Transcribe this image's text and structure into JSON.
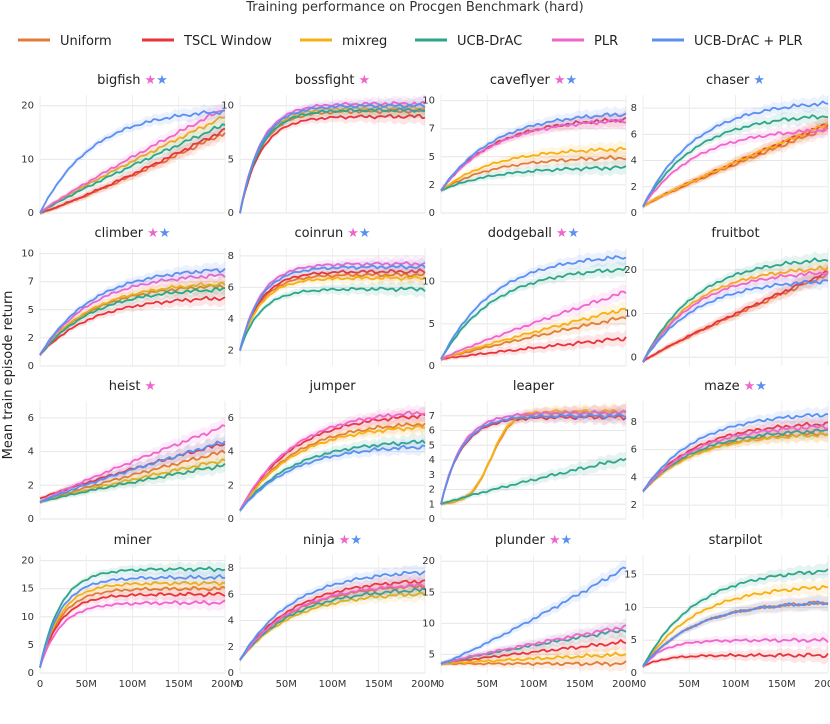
{
  "title": "Training performance on Procgen Benchmark (hard)",
  "ylabel": "Mean train episode return",
  "legend": [
    {
      "name": "Uniform",
      "color": "#e07b39"
    },
    {
      "name": "TSCL Window",
      "color": "#e8333a"
    },
    {
      "name": "mixreg",
      "color": "#f5b014"
    },
    {
      "name": "UCB-DrAC",
      "color": "#2ea58a"
    },
    {
      "name": "PLR",
      "color": "#ee66cc"
    },
    {
      "name": "UCB-DrAC + PLR",
      "color": "#5b8ff0"
    }
  ],
  "star_colors": {
    "pink": "#ee66cc",
    "blue": "#5b8ff0"
  },
  "star_glyph": "★",
  "x_tick_labels": [
    "0",
    "50M",
    "100M",
    "150M",
    "200M"
  ],
  "chart_data": [
    {
      "type": "line",
      "title": "bigfish",
      "stars": [
        "pink",
        "blue"
      ],
      "yticks": [
        0,
        10,
        20
      ],
      "ylim": [
        0,
        22
      ],
      "series": [
        {
          "name": "Uniform",
          "start": 0,
          "end": 15,
          "shape": "slow"
        },
        {
          "name": "TSCL Window",
          "start": 0,
          "end": 15.5,
          "shape": "slow"
        },
        {
          "name": "mixreg",
          "start": 0,
          "end": 18,
          "shape": "lin"
        },
        {
          "name": "UCB-DrAC",
          "start": 0,
          "end": 16.5,
          "shape": "lin"
        },
        {
          "name": "PLR",
          "start": 0,
          "end": 19.5,
          "shape": "lin"
        },
        {
          "name": "UCB-DrAC + PLR",
          "start": 0,
          "end": 19.5,
          "shape": "fast"
        }
      ]
    },
    {
      "type": "line",
      "title": "bossfight",
      "stars": [
        "pink"
      ],
      "yticks": [
        0,
        5,
        10
      ],
      "ylim": [
        0,
        11
      ],
      "series": [
        {
          "name": "Uniform",
          "start": 0,
          "end": 9.5,
          "shape": "vfast"
        },
        {
          "name": "TSCL Window",
          "start": 0,
          "end": 9.0,
          "shape": "vfast"
        },
        {
          "name": "mixreg",
          "start": 0,
          "end": 9.8,
          "shape": "vfast"
        },
        {
          "name": "UCB-DrAC",
          "start": 0,
          "end": 9.6,
          "shape": "vfast"
        },
        {
          "name": "PLR",
          "start": 0,
          "end": 10.2,
          "shape": "vfast"
        },
        {
          "name": "UCB-DrAC + PLR",
          "start": 0,
          "end": 10.0,
          "shape": "vfast"
        }
      ]
    },
    {
      "type": "line",
      "title": "caveflyer",
      "stars": [
        "pink",
        "blue"
      ],
      "yticks": [
        0,
        2.5,
        5,
        7.5,
        10
      ],
      "yticklabels": [
        "0",
        "2",
        "5",
        "7",
        "10"
      ],
      "ylim": [
        0,
        10.5
      ],
      "series": [
        {
          "name": "Uniform",
          "start": 2,
          "end": 5,
          "shape": "fast"
        },
        {
          "name": "TSCL Window",
          "start": 2,
          "end": 8.5,
          "shape": "fast"
        },
        {
          "name": "mixreg",
          "start": 2,
          "end": 5.8,
          "shape": "fast"
        },
        {
          "name": "UCB-DrAC",
          "start": 2,
          "end": 4.1,
          "shape": "fast"
        },
        {
          "name": "PLR",
          "start": 2,
          "end": 8.4,
          "shape": "fast"
        },
        {
          "name": "UCB-DrAC + PLR",
          "start": 2,
          "end": 9.0,
          "shape": "fast"
        }
      ]
    },
    {
      "type": "line",
      "title": "chaser",
      "stars": [
        "blue"
      ],
      "yticks": [
        0,
        2,
        4,
        6,
        8
      ],
      "ylim": [
        0,
        9
      ],
      "series": [
        {
          "name": "Uniform",
          "start": 0.5,
          "end": 6.5,
          "shape": "lin"
        },
        {
          "name": "TSCL Window",
          "start": 0.5,
          "end": 6.8,
          "shape": "lin"
        },
        {
          "name": "mixreg",
          "start": 0.5,
          "end": 6.8,
          "shape": "lin"
        },
        {
          "name": "UCB-DrAC",
          "start": 0.5,
          "end": 7.6,
          "shape": "fast"
        },
        {
          "name": "PLR",
          "start": 0.5,
          "end": 6.5,
          "shape": "fast"
        },
        {
          "name": "UCB-DrAC + PLR",
          "start": 0.5,
          "end": 8.6,
          "shape": "fast"
        }
      ]
    },
    {
      "type": "line",
      "title": "climber",
      "stars": [
        "pink",
        "blue"
      ],
      "yticks": [
        0,
        2.5,
        5,
        7.5,
        10
      ],
      "yticklabels": [
        "0",
        "2",
        "5",
        "7",
        "10"
      ],
      "ylim": [
        0,
        10.5
      ],
      "series": [
        {
          "name": "Uniform",
          "start": 1,
          "end": 7.3,
          "shape": "fast"
        },
        {
          "name": "TSCL Window",
          "start": 1,
          "end": 6.2,
          "shape": "fast"
        },
        {
          "name": "mixreg",
          "start": 1,
          "end": 7.5,
          "shape": "fast"
        },
        {
          "name": "UCB-DrAC",
          "start": 1,
          "end": 7.0,
          "shape": "fast"
        },
        {
          "name": "PLR",
          "start": 1,
          "end": 8.3,
          "shape": "fast"
        },
        {
          "name": "UCB-DrAC + PLR",
          "start": 1,
          "end": 8.8,
          "shape": "fast"
        }
      ]
    },
    {
      "type": "line",
      "title": "coinrun",
      "stars": [
        "pink",
        "blue"
      ],
      "yticks": [
        2,
        4,
        6,
        8
      ],
      "ylim": [
        1,
        8.5
      ],
      "series": [
        {
          "name": "Uniform",
          "start": 2,
          "end": 6.8,
          "shape": "vfast"
        },
        {
          "name": "TSCL Window",
          "start": 2,
          "end": 7.0,
          "shape": "vfast"
        },
        {
          "name": "mixreg",
          "start": 2,
          "end": 6.6,
          "shape": "vfast"
        },
        {
          "name": "UCB-DrAC",
          "start": 2,
          "end": 5.9,
          "shape": "vfast"
        },
        {
          "name": "PLR",
          "start": 2,
          "end": 7.5,
          "shape": "vfast"
        },
        {
          "name": "UCB-DrAC + PLR",
          "start": 2,
          "end": 7.3,
          "shape": "vfast"
        }
      ]
    },
    {
      "type": "line",
      "title": "dodgeball",
      "stars": [
        "pink",
        "blue"
      ],
      "yticks": [
        0,
        5,
        10
      ],
      "ylim": [
        0,
        14
      ],
      "series": [
        {
          "name": "Uniform",
          "start": 0.8,
          "end": 5.8,
          "shape": "lin"
        },
        {
          "name": "TSCL Window",
          "start": 0.8,
          "end": 3.3,
          "shape": "lin"
        },
        {
          "name": "mixreg",
          "start": 0.8,
          "end": 6.8,
          "shape": "lin"
        },
        {
          "name": "UCB-DrAC",
          "start": 0.8,
          "end": 11.8,
          "shape": "fast"
        },
        {
          "name": "PLR",
          "start": 0.8,
          "end": 8.8,
          "shape": "lin"
        },
        {
          "name": "UCB-DrAC + PLR",
          "start": 0.8,
          "end": 13.3,
          "shape": "fast"
        }
      ]
    },
    {
      "type": "line",
      "title": "fruitbot",
      "stars": [],
      "yticks": [
        0,
        10,
        20
      ],
      "ylim": [
        -2,
        25
      ],
      "series": [
        {
          "name": "Uniform",
          "start": -1,
          "end": 19,
          "shape": "lin"
        },
        {
          "name": "TSCL Window",
          "start": -1,
          "end": 19.5,
          "shape": "lin"
        },
        {
          "name": "mixreg",
          "start": -1,
          "end": 21,
          "shape": "fast"
        },
        {
          "name": "UCB-DrAC",
          "start": -1,
          "end": 23,
          "shape": "fast"
        },
        {
          "name": "PLR",
          "start": -1,
          "end": 20,
          "shape": "fast"
        },
        {
          "name": "UCB-DrAC + PLR",
          "start": -1,
          "end": 18,
          "shape": "fast"
        }
      ]
    },
    {
      "type": "line",
      "title": "heist",
      "stars": [
        "pink"
      ],
      "yticks": [
        0,
        2,
        4,
        6
      ],
      "ylim": [
        0,
        7
      ],
      "series": [
        {
          "name": "Uniform",
          "start": 1,
          "end": 4.0,
          "shape": "lin"
        },
        {
          "name": "TSCL Window",
          "start": 1.2,
          "end": 4.5,
          "shape": "lin"
        },
        {
          "name": "mixreg",
          "start": 1,
          "end": 3.5,
          "shape": "lin"
        },
        {
          "name": "UCB-DrAC",
          "start": 1,
          "end": 3.2,
          "shape": "lin"
        },
        {
          "name": "PLR",
          "start": 1,
          "end": 5.5,
          "shape": "lin"
        },
        {
          "name": "UCB-DrAC + PLR",
          "start": 1,
          "end": 4.6,
          "shape": "lin"
        }
      ]
    },
    {
      "type": "line",
      "title": "jumper",
      "stars": [],
      "yticks": [
        0,
        2,
        4,
        6
      ],
      "ylim": [
        0,
        7
      ],
      "series": [
        {
          "name": "Uniform",
          "start": 0.5,
          "end": 5.8,
          "shape": "fast"
        },
        {
          "name": "TSCL Window",
          "start": 0.5,
          "end": 6.3,
          "shape": "fast"
        },
        {
          "name": "mixreg",
          "start": 0.5,
          "end": 5.6,
          "shape": "fast"
        },
        {
          "name": "UCB-DrAC",
          "start": 0.5,
          "end": 4.7,
          "shape": "fast"
        },
        {
          "name": "PLR",
          "start": 0.5,
          "end": 6.5,
          "shape": "fast"
        },
        {
          "name": "UCB-DrAC + PLR",
          "start": 0.5,
          "end": 4.4,
          "shape": "fast"
        }
      ]
    },
    {
      "type": "line",
      "title": "leaper",
      "stars": [],
      "yticks": [
        0,
        1,
        2,
        3,
        4,
        5,
        6,
        7
      ],
      "ylim": [
        0,
        8
      ],
      "series": [
        {
          "name": "Uniform",
          "start": 1,
          "end": 7.2,
          "shape": "delay"
        },
        {
          "name": "TSCL Window",
          "start": 1,
          "end": 6.9,
          "shape": "vfast"
        },
        {
          "name": "mixreg",
          "start": 1,
          "end": 7.3,
          "shape": "delay"
        },
        {
          "name": "UCB-DrAC",
          "start": 1,
          "end": 4.1,
          "shape": "lin"
        },
        {
          "name": "PLR",
          "start": 1,
          "end": 7.2,
          "shape": "vfast"
        },
        {
          "name": "UCB-DrAC + PLR",
          "start": 1,
          "end": 7.0,
          "shape": "vfast"
        }
      ]
    },
    {
      "type": "line",
      "title": "maze",
      "stars": [
        "pink",
        "blue"
      ],
      "yticks": [
        2,
        4,
        6,
        8
      ],
      "ylim": [
        1,
        9.5
      ],
      "series": [
        {
          "name": "Uniform",
          "start": 3,
          "end": 7.3,
          "shape": "fast"
        },
        {
          "name": "TSCL Window",
          "start": 3,
          "end": 8.0,
          "shape": "fast"
        },
        {
          "name": "mixreg",
          "start": 3,
          "end": 7.2,
          "shape": "fast"
        },
        {
          "name": "UCB-DrAC",
          "start": 3,
          "end": 7.5,
          "shape": "fast"
        },
        {
          "name": "PLR",
          "start": 3,
          "end": 7.8,
          "shape": "fast"
        },
        {
          "name": "UCB-DrAC + PLR",
          "start": 3,
          "end": 8.7,
          "shape": "fast"
        }
      ]
    },
    {
      "type": "line",
      "title": "miner",
      "stars": [],
      "yticks": [
        0,
        5,
        10,
        15,
        20
      ],
      "ylim": [
        0,
        21
      ],
      "series": [
        {
          "name": "Uniform",
          "start": 1,
          "end": 15,
          "shape": "vfast"
        },
        {
          "name": "TSCL Window",
          "start": 1,
          "end": 14,
          "shape": "vfast"
        },
        {
          "name": "mixreg",
          "start": 1,
          "end": 16,
          "shape": "vfast"
        },
        {
          "name": "UCB-DrAC",
          "start": 1,
          "end": 18.5,
          "shape": "vfast"
        },
        {
          "name": "PLR",
          "start": 1,
          "end": 12.5,
          "shape": "vfast"
        },
        {
          "name": "UCB-DrAC + PLR",
          "start": 1,
          "end": 17,
          "shape": "vfast"
        }
      ]
    },
    {
      "type": "line",
      "title": "ninja",
      "stars": [
        "pink",
        "blue"
      ],
      "yticks": [
        0,
        2,
        4,
        6,
        8
      ],
      "ylim": [
        0,
        9
      ],
      "series": [
        {
          "name": "Uniform",
          "start": 1,
          "end": 6.8,
          "shape": "fast"
        },
        {
          "name": "TSCL Window",
          "start": 1,
          "end": 7.2,
          "shape": "fast"
        },
        {
          "name": "mixreg",
          "start": 1,
          "end": 6.2,
          "shape": "fast"
        },
        {
          "name": "UCB-DrAC",
          "start": 1,
          "end": 6.5,
          "shape": "fast"
        },
        {
          "name": "PLR",
          "start": 1,
          "end": 6.9,
          "shape": "fast"
        },
        {
          "name": "UCB-DrAC + PLR",
          "start": 1,
          "end": 7.9,
          "shape": "fast"
        }
      ]
    },
    {
      "type": "line",
      "title": "plunder",
      "stars": [
        "pink",
        "blue"
      ],
      "yticks": [
        5,
        10,
        15,
        20
      ],
      "ylim": [
        2,
        21
      ],
      "series": [
        {
          "name": "Uniform",
          "start": 3.5,
          "end": 3.5,
          "shape": "lin"
        },
        {
          "name": "TSCL Window",
          "start": 3.5,
          "end": 7,
          "shape": "lin"
        },
        {
          "name": "mixreg",
          "start": 3.5,
          "end": 5,
          "shape": "lin"
        },
        {
          "name": "UCB-DrAC",
          "start": 3.5,
          "end": 9,
          "shape": "lin"
        },
        {
          "name": "PLR",
          "start": 3.5,
          "end": 9.5,
          "shape": "lin"
        },
        {
          "name": "UCB-DrAC + PLR",
          "start": 3.5,
          "end": 19,
          "shape": "slow"
        }
      ]
    },
    {
      "type": "line",
      "title": "starpilot",
      "stars": [],
      "yticks": [
        0,
        5,
        10,
        15
      ],
      "ylim": [
        0,
        18
      ],
      "series": [
        {
          "name": "Uniform",
          "start": 1,
          "end": 11,
          "shape": "fast"
        },
        {
          "name": "TSCL Window",
          "start": 1,
          "end": 2.7,
          "shape": "vfast"
        },
        {
          "name": "mixreg",
          "start": 1,
          "end": 13.5,
          "shape": "fast"
        },
        {
          "name": "UCB-DrAC",
          "start": 1,
          "end": 16,
          "shape": "fast"
        },
        {
          "name": "PLR",
          "start": 1,
          "end": 5,
          "shape": "vfast"
        },
        {
          "name": "UCB-DrAC + PLR",
          "start": 1,
          "end": 11,
          "shape": "fast"
        }
      ]
    }
  ]
}
